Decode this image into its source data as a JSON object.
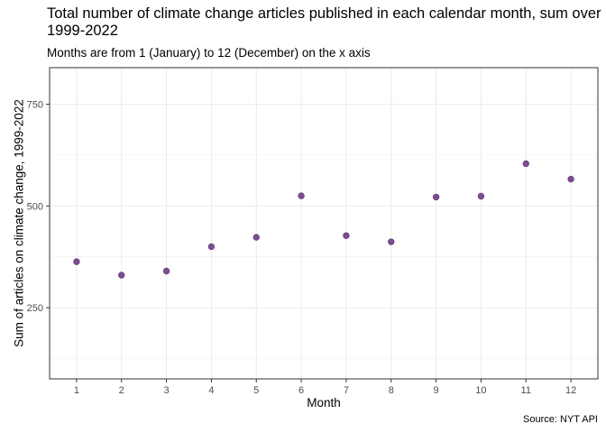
{
  "chart_data": {
    "type": "scatter",
    "title": "Total number of climate change articles published in each calendar month, sum over 1999-2022",
    "subtitle": "Months are from 1 (January) to 12 (December) on the x axis",
    "caption": "Source: NYT API",
    "xlabel": "Month",
    "ylabel": "Sum of articles on climate change, 1999-2022",
    "x": [
      1,
      2,
      3,
      4,
      5,
      6,
      7,
      8,
      9,
      10,
      11,
      12
    ],
    "y": [
      363,
      330,
      340,
      400,
      423,
      525,
      427,
      412,
      522,
      524,
      604,
      566
    ],
    "x_ticks": [
      "1",
      "2",
      "3",
      "4",
      "5",
      "6",
      "7",
      "8",
      "9",
      "10",
      "11",
      "12"
    ],
    "y_ticks": [
      250,
      500,
      750
    ],
    "xlim": [
      0.4,
      12.6
    ],
    "ylim": [
      75,
      840
    ],
    "grid": true,
    "point_color": "#7b4f8e",
    "point_stroke": "#6a3f7e"
  }
}
